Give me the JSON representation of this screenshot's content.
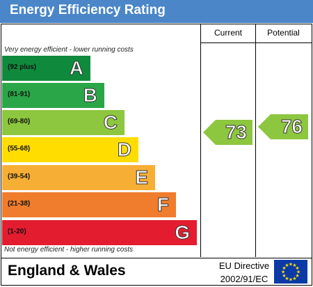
{
  "title": "Energy Efficiency Rating",
  "columns": {
    "current": "Current",
    "potential": "Potential"
  },
  "top_note": "Very energy efficient - lower running costs",
  "bottom_note": "Not energy efficient - higher running costs",
  "bands": [
    {
      "range": "(92 plus)",
      "letter": "A",
      "color": "#0f8a3c"
    },
    {
      "range": "(81-91)",
      "letter": "B",
      "color": "#2aa648"
    },
    {
      "range": "(69-80)",
      "letter": "C",
      "color": "#8dc63f"
    },
    {
      "range": "(55-68)",
      "letter": "D",
      "color": "#ffdd00"
    },
    {
      "range": "(39-54)",
      "letter": "E",
      "color": "#f6ae35"
    },
    {
      "range": "(21-38)",
      "letter": "F",
      "color": "#ef7d2d"
    },
    {
      "range": "(1-20)",
      "letter": "G",
      "color": "#e31d2f"
    }
  ],
  "current_rating": {
    "value": "73",
    "band": "C",
    "color": "#8dc63f"
  },
  "potential_rating": {
    "value": "76",
    "band": "C",
    "color": "#8dc63f"
  },
  "footer": {
    "region": "England & Wales",
    "directive_line1": "EU Directive",
    "directive_line2": "2002/91/EC",
    "flag_color": "#0b3aa6",
    "star_color": "#ffdd00"
  }
}
